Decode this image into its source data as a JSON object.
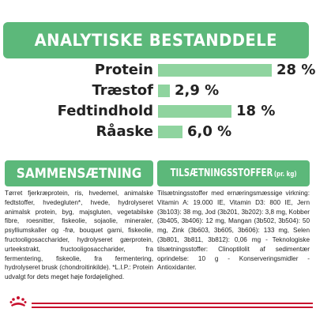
{
  "colors": {
    "brand_green": "#5cb87a",
    "bar_green": "#8fd49f",
    "text": "#222222",
    "stripe_red": "#c8102e"
  },
  "analysis": {
    "title": "ANALYTISKE BESTANDDELE",
    "items": [
      {
        "label": "Protein",
        "value": "28 %",
        "percent": 28
      },
      {
        "label": "Træstof",
        "value": "2,9 %",
        "percent": 2.9
      },
      {
        "label": "Fedtindhold",
        "value": "18 %",
        "percent": 18
      },
      {
        "label": "Råaske",
        "value": "6,0 %",
        "percent": 6.0
      }
    ]
  },
  "composition": {
    "title": "SAMMENSÆTNING",
    "text": "Tørret fjerkræprotein, ris, hvedemel, animalske fedtstoffer, hvedegluten*, hvede, hydrolyseret animalsk protein, byg, majsgluten, vegetabilske fibre, roesnitter, fiskeolie, sojaolie, mineraler, psylliumskaller og -frø, bouquet garni, fiskeolie, fructooligosaccharider, hydrolyseret gærprotein, urteekstrakt, fructooligosaccharider, fra fermentering, fiskeolie, fra fermentering, hydrolyseret brusk (chondroitinkilde). *L.I.P.: Protein udvalgt for dets meget høje fordøjelighed."
  },
  "additives": {
    "title": "TILSÆTNINGSSTOFFER",
    "unit": "(pr. kg)",
    "text": "Tilsætningsstoffer med ernæringsmæssige virkning: Vitamin A: 19.000 IE, Vitamin D3: 800 IE, Jern (3b103): 38 mg, Jod (3b201, 3b202): 3,8 mg, Kobber (3b405, 3b406): 12 mg, Mangan (3b502, 3b504): 50 mg, Zink (3b603, 3b605, 3b606): 133 mg, Selen (3b801, 3b811, 3b812): 0,06 mg - Teknologiske tilsætningsstoffer: Clinoptilolit af sedimentær oprindelse: 10 g - Konserveringsmidler - Antioxidanter."
  },
  "footer": {
    "logo_icon": "royal-canin-crown-icon"
  }
}
